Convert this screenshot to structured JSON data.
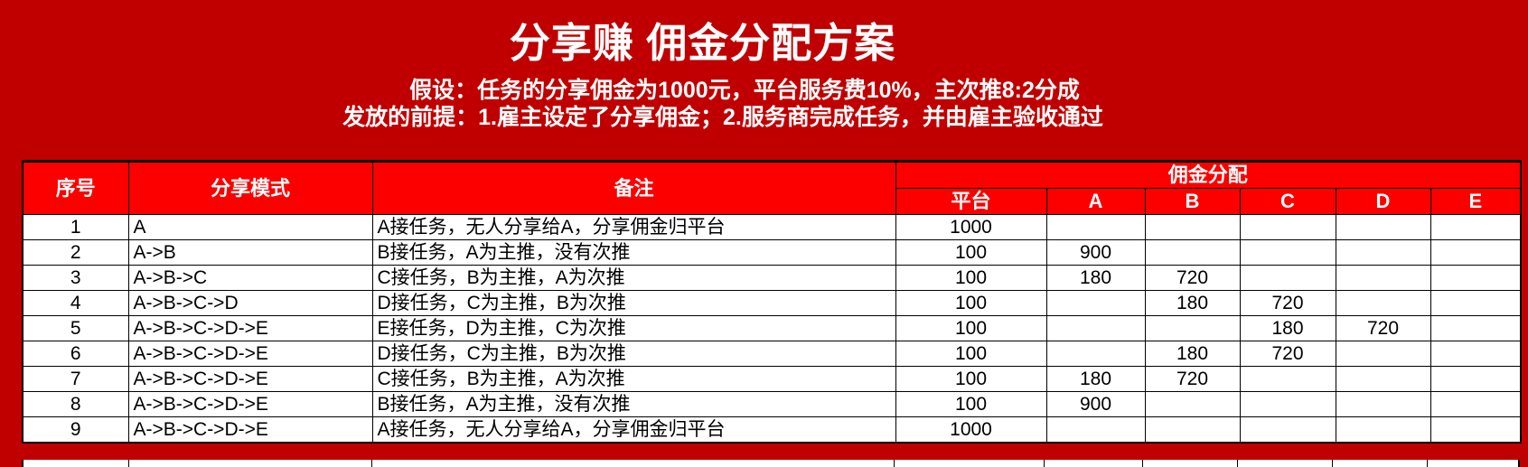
{
  "colors": {
    "page_background": "#C00000",
    "table_header_fill": "#FC0000",
    "header_text": "#FFFFFF",
    "cell_background": "#FFFFFF",
    "cell_text": "#000000",
    "border": "#000000"
  },
  "header": {
    "title": "分享赚 佣金分配方案",
    "assumption": "假设：任务的分享佣金为1000元，平台服务费10%，主次推8:2分成",
    "precondition": "发放的前提：1.雇主设定了分享佣金；2.服务商完成任务，并由雇主验收通过"
  },
  "table": {
    "headers": {
      "index": "序号",
      "mode": "分享模式",
      "remark": "备注",
      "commission_group": "佣金分配"
    },
    "sub_headers": [
      "平台",
      "A",
      "B",
      "C",
      "D",
      "E"
    ],
    "rows": [
      {
        "no": "1",
        "mode": "A",
        "note": "A接任务，无人分享给A，分享佣金归平台",
        "vals": [
          "1000",
          "",
          "",
          "",
          "",
          ""
        ]
      },
      {
        "no": "2",
        "mode": "A->B",
        "note": "B接任务，A为主推，没有次推",
        "vals": [
          "100",
          "900",
          "",
          "",
          "",
          ""
        ]
      },
      {
        "no": "3",
        "mode": "A->B->C",
        "note": "C接任务，B为主推，A为次推",
        "vals": [
          "100",
          "180",
          "720",
          "",
          "",
          ""
        ]
      },
      {
        "no": "4",
        "mode": "A->B->C->D",
        "note": "D接任务，C为主推，B为次推",
        "vals": [
          "100",
          "",
          "180",
          "720",
          "",
          ""
        ]
      },
      {
        "no": "5",
        "mode": "A->B->C->D->E",
        "note": "E接任务，D为主推，C为次推",
        "vals": [
          "100",
          "",
          "",
          "180",
          "720",
          ""
        ]
      },
      {
        "no": "6",
        "mode": "A->B->C->D->E",
        "note": "D接任务，C为主推，B为次推",
        "vals": [
          "100",
          "",
          "180",
          "720",
          "",
          ""
        ]
      },
      {
        "no": "7",
        "mode": "A->B->C->D->E",
        "note": "C接任务，B为主推，A为次推",
        "vals": [
          "100",
          "180",
          "720",
          "",
          "",
          ""
        ]
      },
      {
        "no": "8",
        "mode": "A->B->C->D->E",
        "note": "B接任务，A为主推，没有次推",
        "vals": [
          "100",
          "900",
          "",
          "",
          "",
          ""
        ]
      },
      {
        "no": "9",
        "mode": "A->B->C->D->E",
        "note": "A接任务，无人分享给A，分享佣金归平台",
        "vals": [
          "1000",
          "",
          "",
          "",
          "",
          ""
        ]
      }
    ]
  }
}
